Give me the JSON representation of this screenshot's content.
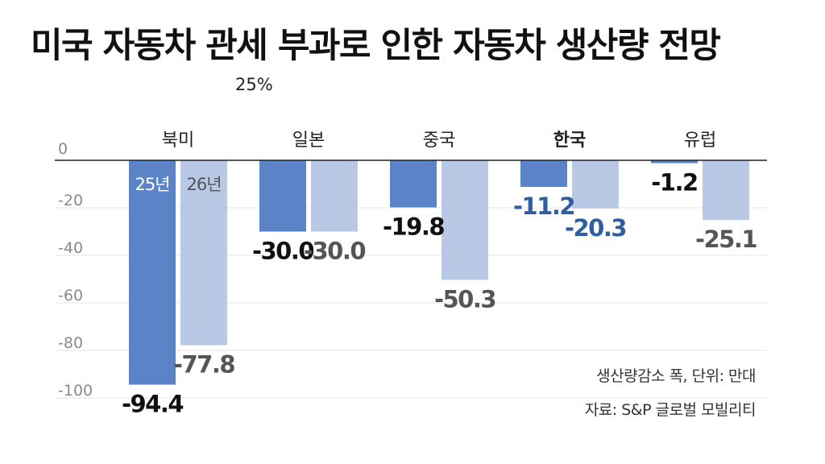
{
  "chart_data": {
    "type": "bar",
    "title": "미국 자동차 관세 부과로 인한 자동차 생산량 전망",
    "subtitle": "25%",
    "categories": [
      "북미",
      "일본",
      "중국",
      "한국",
      "유럽"
    ],
    "highlight_category": "한국",
    "series": [
      {
        "name": "25년",
        "values": [
          -94.4,
          -30.0,
          -19.8,
          -11.2,
          -1.2
        ],
        "color": "#5b83c8"
      },
      {
        "name": "26년",
        "values": [
          -77.8,
          -30.0,
          -50.3,
          -20.3,
          -25.1
        ],
        "color": "#b9c9e5"
      }
    ],
    "value_labels": [
      [
        "-94.4",
        "-30.0",
        "-19.8",
        "-11.2",
        "-1.2"
      ],
      [
        "-77.8",
        "-30.0",
        "-50.3",
        "-20.3",
        "-25.1"
      ]
    ],
    "label_colors": {
      "default_25": "#111111",
      "default_26": "#555555",
      "highlight": "#2f5f9e"
    },
    "y_ticks": [
      0,
      -20,
      -40,
      -60,
      -80,
      -100
    ],
    "ylim": [
      -100,
      0
    ],
    "grid": true,
    "legend": "inside-first-bars"
  },
  "notes": {
    "unit": "생산량감소 폭, 단위: 만대",
    "source": "자료: S&P 글로벌 모빌리티"
  }
}
